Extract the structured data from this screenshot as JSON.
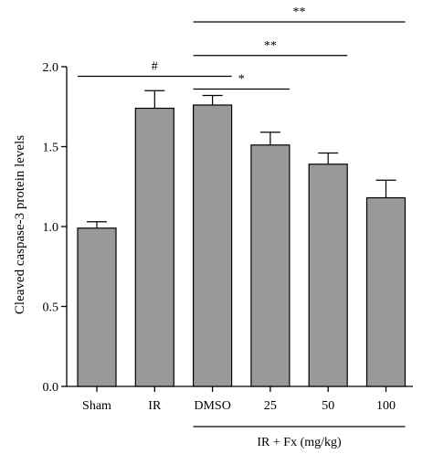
{
  "chart_data": {
    "type": "bar",
    "categories": [
      "Sham",
      "IR",
      "DMSO",
      "25",
      "50",
      "100"
    ],
    "values": [
      0.99,
      1.74,
      1.76,
      1.51,
      1.39,
      1.18
    ],
    "errors": [
      0.04,
      0.11,
      0.06,
      0.08,
      0.07,
      0.11
    ],
    "ylabel": "Cleaved caspase-3 protein levels",
    "ylim": [
      0,
      2.0
    ],
    "yticks": [
      0,
      0.5,
      1.0,
      1.5,
      2.0
    ],
    "ytick_labels": [
      "0.0",
      "0.5",
      "1.0",
      "1.5",
      "2.0"
    ],
    "group_label": {
      "text": "IR + Fx (mg/kg)",
      "from": 2,
      "to": 5
    },
    "significance": [
      {
        "from": 0,
        "to": 2,
        "y": 1.94,
        "label": "#"
      },
      {
        "from": 2,
        "to": 3,
        "y": 1.86,
        "label": "*"
      },
      {
        "from": 2,
        "to": 4,
        "y": 2.07,
        "label": "**"
      },
      {
        "from": 2,
        "to": 5,
        "y": 2.28,
        "label": "**"
      }
    ],
    "bar_color": "#999999",
    "grid": false,
    "legend": "none"
  }
}
